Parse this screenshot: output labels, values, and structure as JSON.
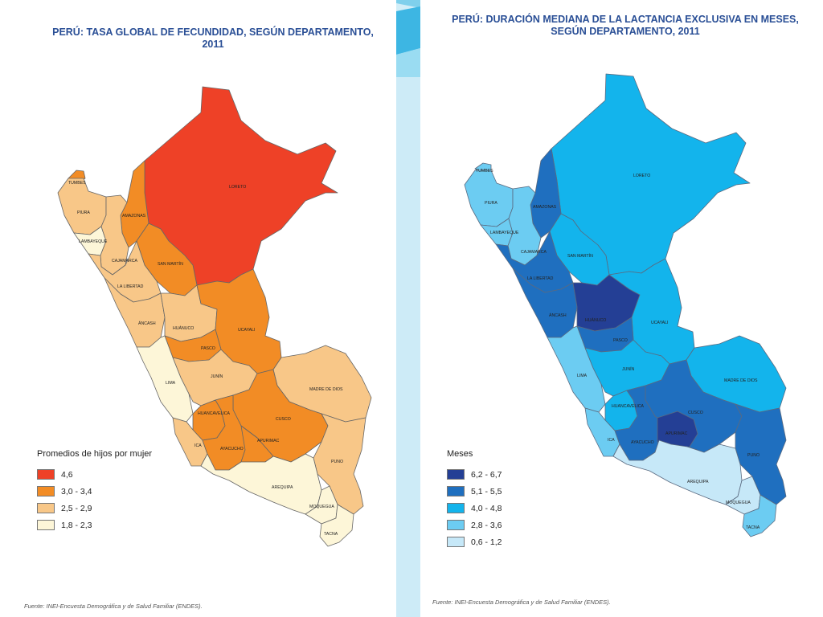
{
  "left_map": {
    "title": "PERÚ: TASA GLOBAL DE FECUNDIDAD, SEGÚN DEPARTAMENTO, 2011",
    "legend_title": "Promedios de hijos por mujer",
    "legend": [
      {
        "label": "4,6",
        "color": "#ee4127"
      },
      {
        "label": "3,0 - 3,4",
        "color": "#f28c25"
      },
      {
        "label": "2,5 - 2,9",
        "color": "#f8c788"
      },
      {
        "label": "1,8 - 2,3",
        "color": "#fdf6d8"
      }
    ],
    "regions": {
      "loreto": {
        "label": "LORETO",
        "class": "4,6"
      },
      "tumbes": {
        "label": "TUMBES",
        "class": "3,0 - 3,4"
      },
      "piura": {
        "label": "PIURA",
        "class": "2,5 - 2,9"
      },
      "lambayeque": {
        "label": "LAMBAYEQUE",
        "class": "1,8 - 2,3"
      },
      "amazonas": {
        "label": "AMAZONAS",
        "class": "3,0 - 3,4"
      },
      "cajamarca": {
        "label": "CAJAMARCA",
        "class": "2,5 - 2,9"
      },
      "san_martin": {
        "label": "SAN MARTÍN",
        "class": "3,0 - 3,4"
      },
      "la_libertad": {
        "label": "LA LIBERTAD",
        "class": "2,5 - 2,9"
      },
      "ancash": {
        "label": "ÁNCASH",
        "class": "2,5 - 2,9"
      },
      "huanuco": {
        "label": "HUÁNUCO",
        "class": "2,5 - 2,9"
      },
      "ucayali": {
        "label": "UCAYALI",
        "class": "3,0 - 3,4"
      },
      "pasco": {
        "label": "PASCO",
        "class": "3,0 - 3,4"
      },
      "lima": {
        "label": "LIMA",
        "class": "1,8 - 2,3"
      },
      "junin": {
        "label": "JUNÍN",
        "class": "2,5 - 2,9"
      },
      "madre_de_dios": {
        "label": "MADRE DE DIOS",
        "class": "2,5 - 2,9"
      },
      "huancavelica": {
        "label": "HUANCAVELICA",
        "class": "3,0 - 3,4"
      },
      "cusco": {
        "label": "CUSCO",
        "class": "3,0 - 3,4"
      },
      "ica": {
        "label": "ICA",
        "class": "2,5 - 2,9"
      },
      "ayacucho": {
        "label": "AYACUCHO",
        "class": "3,0 - 3,4"
      },
      "apurimac": {
        "label": "APURIMAC",
        "class": "3,0 - 3,4"
      },
      "puno": {
        "label": "PUNO",
        "class": "2,5 - 2,9"
      },
      "arequipa": {
        "label": "AREQUIPA",
        "class": "1,8 - 2,3"
      },
      "moquegua": {
        "label": "MOQUEGUA",
        "class": "1,8 - 2,3"
      },
      "tacna": {
        "label": "TACNA",
        "class": "1,8 - 2,3"
      }
    },
    "source": "Fuente: INEI-Encuesta Demográfica y de Salud Familiar (ENDES)."
  },
  "right_map": {
    "title": "PERÚ: DURACIÓN MEDIANA DE LA LACTANCIA EXCLUSIVA EN MESES, SEGÚN DEPARTAMENTO, 2011",
    "legend_title": "Meses",
    "legend": [
      {
        "label": "6,2 - 6,7",
        "color": "#243f95"
      },
      {
        "label": "5,1 - 5,5",
        "color": "#1f6fbf"
      },
      {
        "label": "4,0 - 4,8",
        "color": "#13b4ec"
      },
      {
        "label": "2,8 - 3,6",
        "color": "#6cccf2"
      },
      {
        "label": "0,6 - 1,2",
        "color": "#c6e8f8"
      }
    ],
    "regions": {
      "loreto": {
        "label": "LORETO",
        "class": "4,0 - 4,8"
      },
      "tumbes": {
        "label": "TUMBES",
        "class": "2,8 - 3,6"
      },
      "piura": {
        "label": "PIURA",
        "class": "2,8 - 3,6"
      },
      "lambayeque": {
        "label": "LAMBAYEQUE",
        "class": "2,8 - 3,6"
      },
      "amazonas": {
        "label": "AMAZONAS",
        "class": "5,1 - 5,5"
      },
      "cajamarca": {
        "label": "CAJAMARCA",
        "class": "2,8 - 3,6"
      },
      "san_martin": {
        "label": "SAN MARTÍN",
        "class": "4,0 - 4,8"
      },
      "la_libertad": {
        "label": "LA LIBERTAD",
        "class": "5,1 - 5,5"
      },
      "ancash": {
        "label": "ÁNCASH",
        "class": "5,1 - 5,5"
      },
      "huanuco": {
        "label": "HUÁNUCO",
        "class": "6,2 - 6,7"
      },
      "ucayali": {
        "label": "UCAYALI",
        "class": "4,0 - 4,8"
      },
      "pasco": {
        "label": "PASCO",
        "class": "5,1 - 5,5"
      },
      "lima": {
        "label": "LIMA",
        "class": "2,8 - 3,6"
      },
      "junin": {
        "label": "JUNÍN",
        "class": "4,0 - 4,8"
      },
      "madre_de_dios": {
        "label": "MADRE DE DIOS",
        "class": "4,0 - 4,8"
      },
      "huancavelica": {
        "label": "HUANCAVELICA",
        "class": "4,0 - 4,8"
      },
      "cusco": {
        "label": "CUSCO",
        "class": "5,1 - 5,5"
      },
      "ica": {
        "label": "ICA",
        "class": "2,8 - 3,6"
      },
      "ayacucho": {
        "label": "AYACUCHO",
        "class": "5,1 - 5,5"
      },
      "apurimac": {
        "label": "APURIMAC",
        "class": "6,2 - 6,7"
      },
      "puno": {
        "label": "PUNO",
        "class": "5,1 - 5,5"
      },
      "arequipa": {
        "label": "AREQUIPA",
        "class": "0,6 - 1,2"
      },
      "moquegua": {
        "label": "MOQUEGUA",
        "class": "0,6 - 1,2"
      },
      "tacna": {
        "label": "TACNA",
        "class": "2,8 - 3,6"
      }
    },
    "source": "Fuente: INEI-Encuesta Demográfica y de Salud Familiar (ENDES)."
  }
}
